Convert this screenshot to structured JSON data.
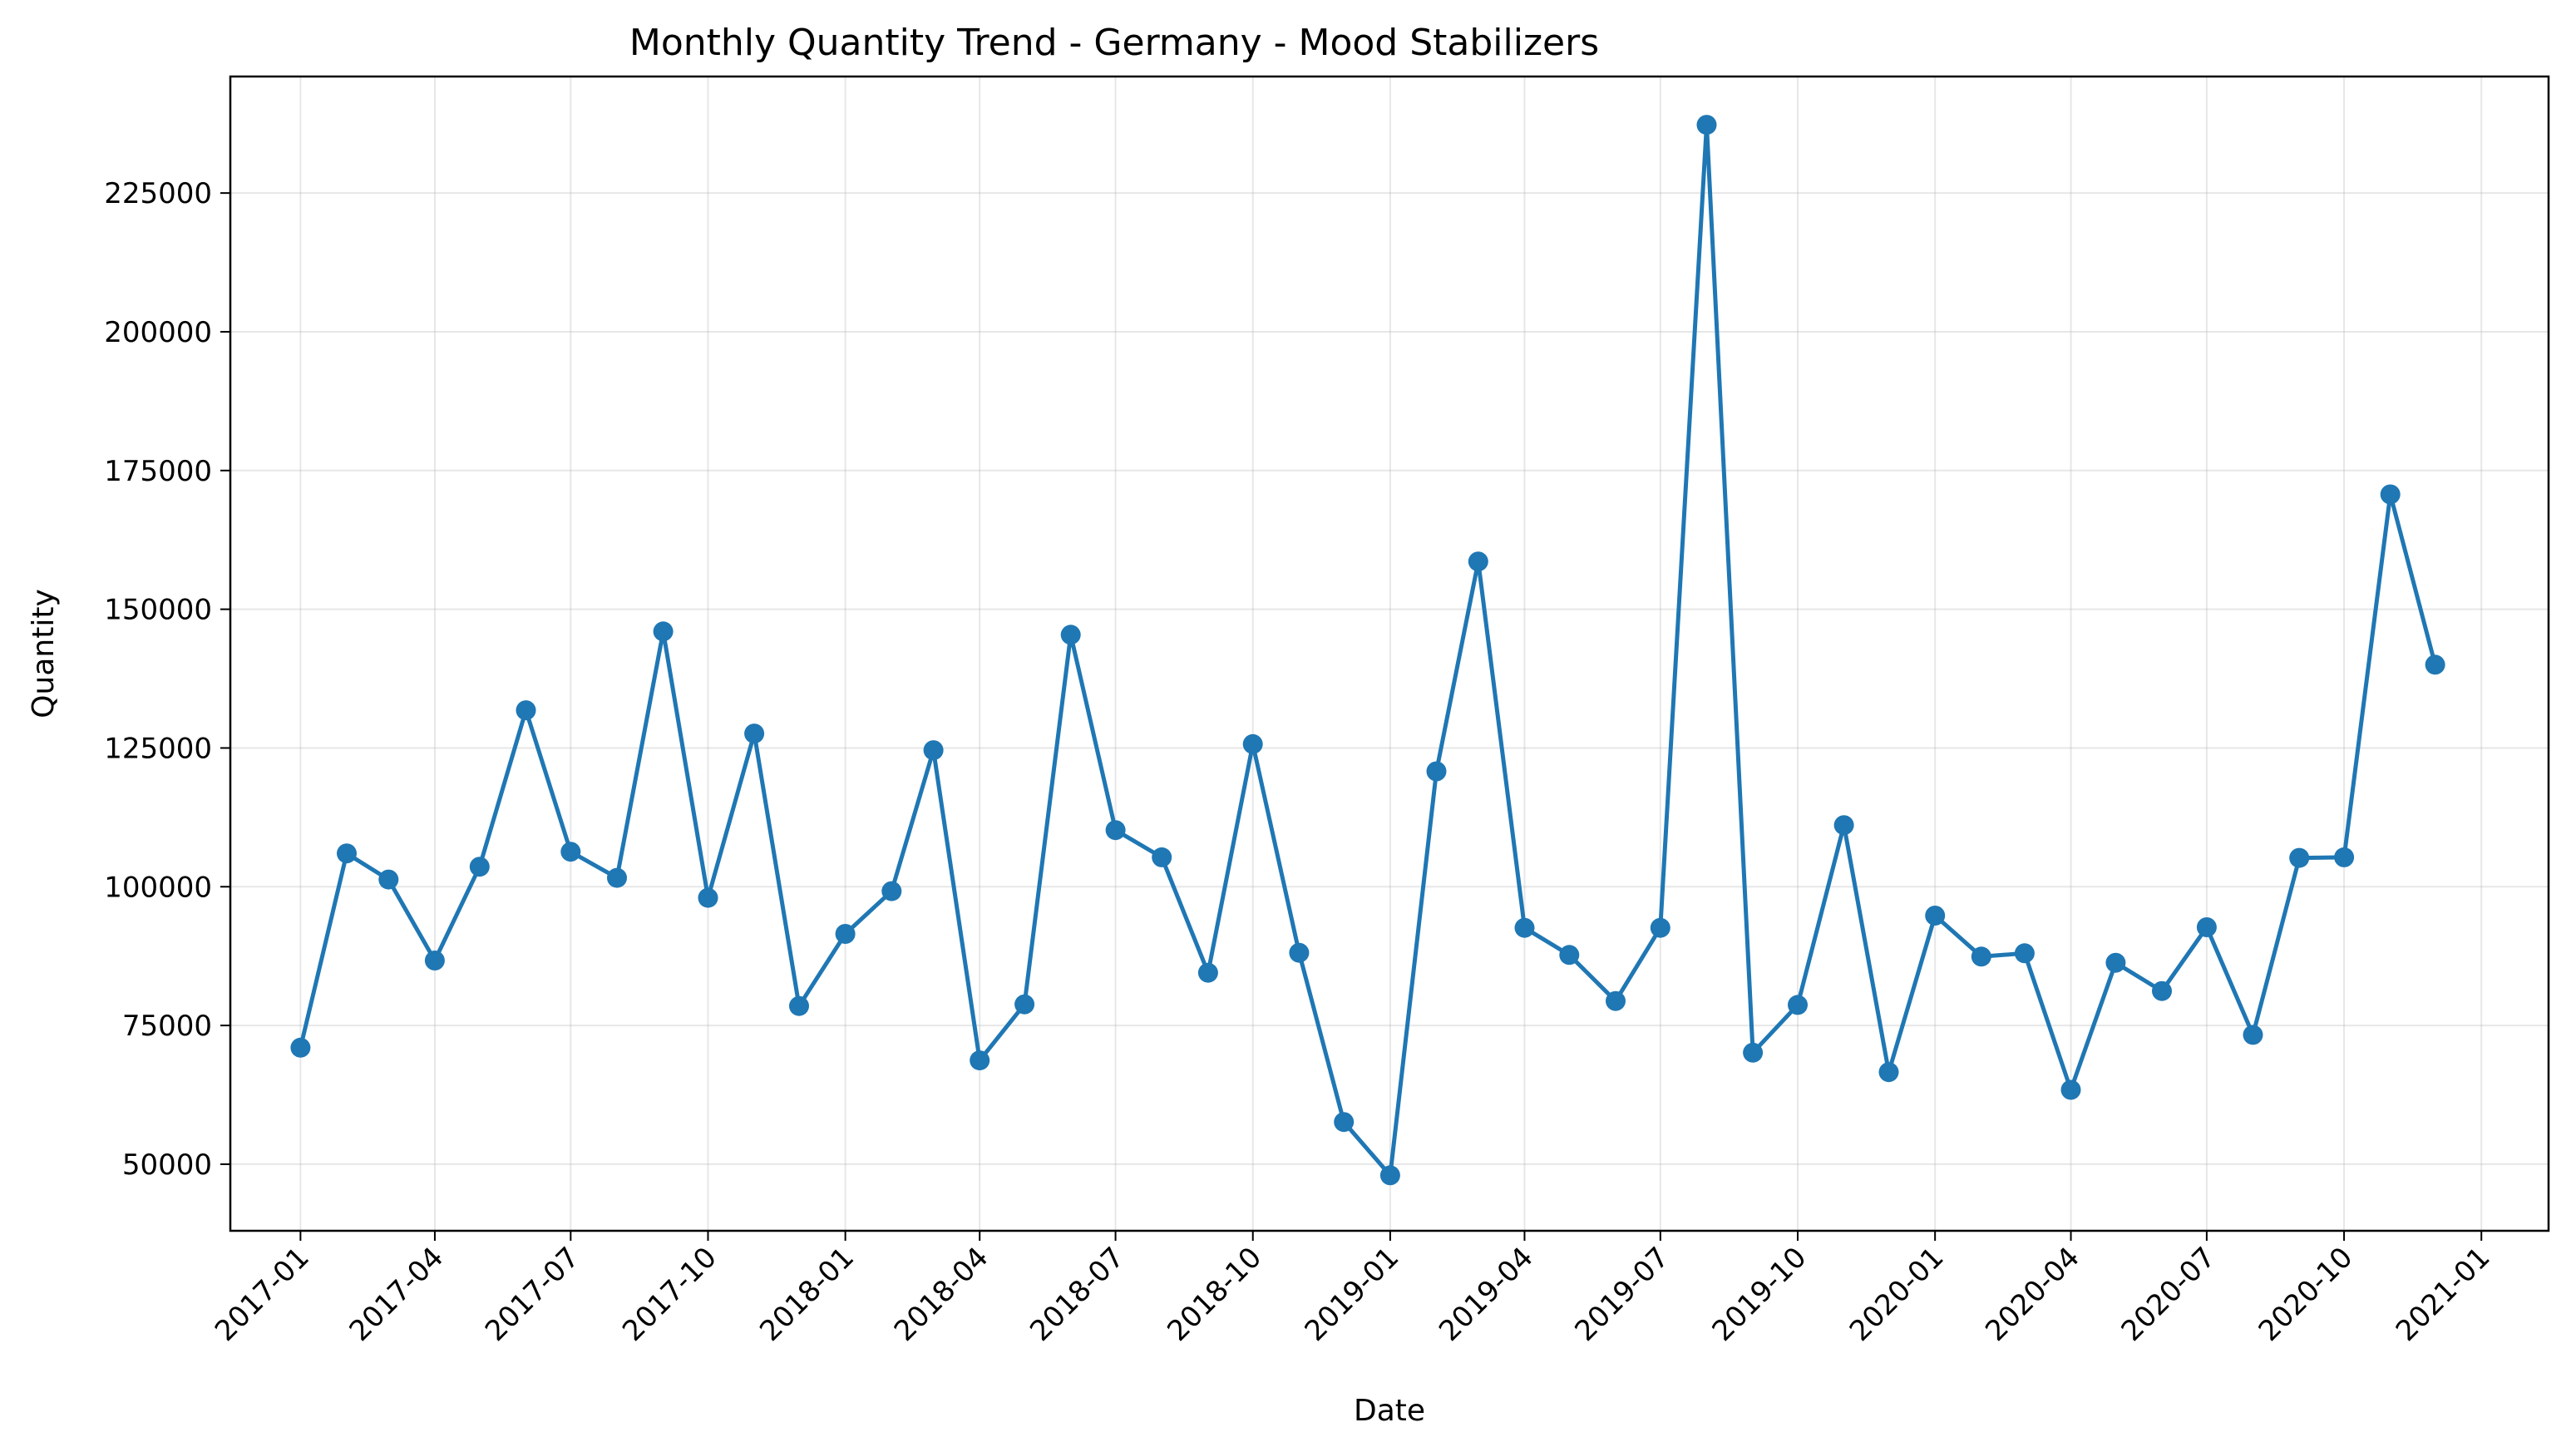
{
  "chart_data": {
    "type": "line",
    "title": "Monthly Quantity Trend - Germany - Mood Stabilizers",
    "xlabel": "Date",
    "ylabel": "Quantity",
    "grid": true,
    "series_color": "#1f77b4",
    "marker": "circle",
    "xlim": [
      "2016-11-15",
      "2021-02-15"
    ],
    "ylim": [
      38000,
      246000
    ],
    "x_ticks": [
      "2017-01",
      "2017-04",
      "2017-07",
      "2017-10",
      "2018-01",
      "2018-04",
      "2018-07",
      "2018-10",
      "2019-01",
      "2019-04",
      "2019-07",
      "2019-10",
      "2020-01",
      "2020-04",
      "2020-07",
      "2020-10",
      "2021-01"
    ],
    "y_ticks": [
      50000,
      75000,
      100000,
      125000,
      150000,
      175000,
      200000,
      225000
    ],
    "x": [
      "2017-01-01",
      "2017-02-01",
      "2017-03-01",
      "2017-04-01",
      "2017-05-01",
      "2017-06-01",
      "2017-07-01",
      "2017-08-01",
      "2017-09-01",
      "2017-10-01",
      "2017-11-01",
      "2017-12-01",
      "2018-01-01",
      "2018-02-01",
      "2018-03-01",
      "2018-04-01",
      "2018-05-01",
      "2018-06-01",
      "2018-07-01",
      "2018-08-01",
      "2018-09-01",
      "2018-10-01",
      "2018-11-01",
      "2018-12-01",
      "2019-01-01",
      "2019-02-01",
      "2019-03-01",
      "2019-04-01",
      "2019-05-01",
      "2019-06-01",
      "2019-07-01",
      "2019-08-01",
      "2019-09-01",
      "2019-10-01",
      "2019-11-01",
      "2019-12-01",
      "2020-01-01",
      "2020-02-01",
      "2020-03-01",
      "2020-04-01",
      "2020-05-01",
      "2020-06-01",
      "2020-07-01",
      "2020-08-01",
      "2020-09-01",
      "2020-10-01",
      "2020-11-01",
      "2020-12-01"
    ],
    "values": [
      71000,
      106000,
      101300,
      86700,
      103600,
      131800,
      106300,
      101600,
      146000,
      98000,
      127600,
      78500,
      91500,
      99200,
      124600,
      68700,
      78800,
      145400,
      110200,
      105300,
      84500,
      125700,
      88100,
      57600,
      48000,
      120800,
      158600,
      92600,
      87700,
      79400,
      92600,
      237300,
      70100,
      78700,
      111100,
      66600,
      94800,
      87400,
      88000,
      63400,
      86300,
      81200,
      92700,
      73300,
      105200,
      105300,
      170700,
      140000
    ]
  }
}
